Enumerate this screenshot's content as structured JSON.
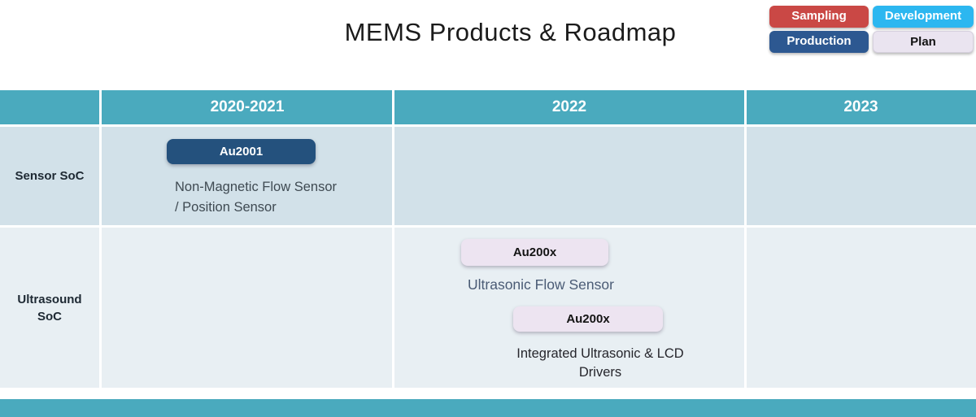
{
  "title": "MEMS Products & Roadmap",
  "legend": {
    "items": [
      {
        "label": "Sampling",
        "color": "#ca4845",
        "text_color": "#ffffff"
      },
      {
        "label": "Development",
        "color": "#2cb7f0",
        "text_color": "#ffffff"
      },
      {
        "label": "Production",
        "color": "#2d5891",
        "text_color": "#ffffff"
      },
      {
        "label": "Plan",
        "color": "#eae4f0",
        "text_color": "#121212"
      }
    ]
  },
  "roadmap": {
    "columns": [
      "2020-2021",
      "2022",
      "2023"
    ],
    "rows": [
      {
        "label": "Sensor SoC",
        "label_lines": [
          "Sensor SoC"
        ],
        "items": [
          {
            "chip": "Au2001",
            "status": "Production",
            "column": "2020-2021",
            "description": "Non-Magnetic Flow Sensor / Position Sensor",
            "desc_lines": [
              "Non-Magnetic Flow Sensor",
              "/ Position Sensor"
            ]
          }
        ]
      },
      {
        "label": "Ultrasound SoC",
        "label_lines": [
          "Ultrasound",
          "SoC"
        ],
        "items": [
          {
            "chip": "Au200x",
            "status": "Plan",
            "column": "2022",
            "description": "Ultrasonic Flow Sensor",
            "desc_lines": [
              "Ultrasonic Flow Sensor"
            ]
          },
          {
            "chip": "Au200x",
            "status": "Plan",
            "column": "2022",
            "description": "Integrated Ultrasonic & LCD Drivers",
            "desc_lines": [
              "Integrated Ultrasonic & LCD",
              "Drivers"
            ]
          }
        ]
      }
    ]
  },
  "colors": {
    "header_teal": "#4aaabe",
    "footer_teal": "#4aaabe",
    "row1_bg": "#d2e1e9",
    "row2_bg": "#e8eff3",
    "production_pill": "#24517d",
    "plan_pill": "#ede4f1"
  }
}
